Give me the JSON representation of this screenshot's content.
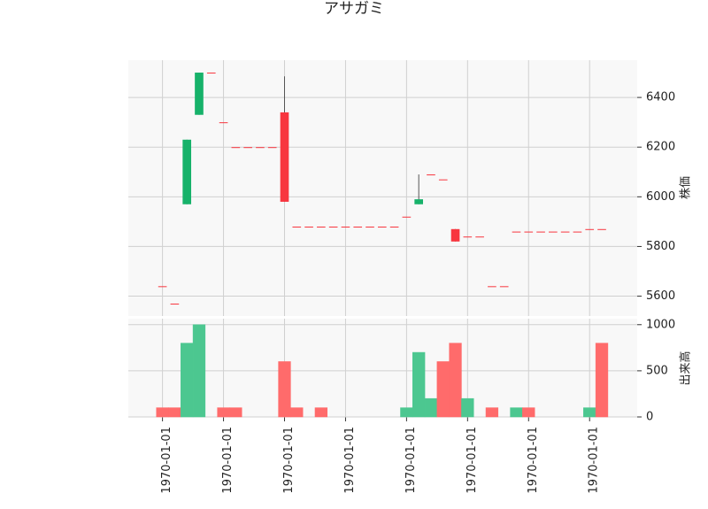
{
  "chart_data": [
    {
      "type": "candlestick",
      "title": "アサガミ",
      "ylabel": "株価",
      "x": [
        0,
        1,
        2,
        3,
        4,
        5,
        6,
        7,
        8,
        9,
        10,
        11,
        12,
        13,
        14,
        15,
        16,
        17,
        18,
        19,
        20,
        21,
        22,
        23,
        24,
        25,
        26,
        27,
        28,
        29,
        30,
        31,
        32,
        33,
        34,
        35,
        36
      ],
      "open": [
        5640,
        5570,
        5970,
        6330,
        6500,
        6300,
        6200,
        6200,
        6200,
        6200,
        6340,
        5880,
        5880,
        5880,
        5880,
        5880,
        5880,
        5880,
        5880,
        5880,
        5920,
        5970,
        6090,
        6070,
        5870,
        5840,
        5840,
        5640,
        5640,
        5860,
        5860,
        5860,
        5860,
        5860,
        5860,
        5870,
        5870
      ],
      "high": [
        5640,
        5570,
        6230,
        6500,
        6500,
        6300,
        6200,
        6200,
        6200,
        6200,
        6485,
        5880,
        5880,
        5880,
        5880,
        5880,
        5880,
        5880,
        5880,
        5880,
        5920,
        6090,
        6090,
        6070,
        5870,
        5840,
        5840,
        5640,
        5640,
        5860,
        5860,
        5860,
        5860,
        5860,
        5860,
        5870,
        5870
      ],
      "low": [
        5640,
        5570,
        5970,
        6330,
        6500,
        6300,
        6200,
        6200,
        6200,
        6200,
        5980,
        5880,
        5880,
        5880,
        5880,
        5880,
        5880,
        5880,
        5880,
        5880,
        5920,
        5970,
        6090,
        6070,
        5820,
        5840,
        5840,
        5640,
        5640,
        5860,
        5860,
        5860,
        5860,
        5860,
        5860,
        5870,
        5870
      ],
      "close": [
        5640,
        5570,
        6230,
        6500,
        6500,
        6300,
        6200,
        6200,
        6200,
        6200,
        5980,
        5880,
        5880,
        5880,
        5880,
        5880,
        5880,
        5880,
        5880,
        5880,
        5920,
        5990,
        6090,
        6070,
        5820,
        5840,
        5840,
        5640,
        5640,
        5860,
        5860,
        5860,
        5860,
        5860,
        5860,
        5870,
        5870
      ],
      "up_color": "#17b26a",
      "down_color": "#f8363f",
      "xlim": [
        -2.8,
        38.9
      ],
      "ylim": [
        5520,
        6550
      ],
      "yticks": [
        5600,
        5800,
        6000,
        6200,
        6400
      ],
      "grid": true
    },
    {
      "type": "volume",
      "ylabel": "出来高",
      "x": [
        0,
        1,
        2,
        3,
        4,
        5,
        6,
        7,
        8,
        9,
        10,
        11,
        12,
        13,
        14,
        15,
        16,
        17,
        18,
        19,
        20,
        21,
        22,
        23,
        24,
        25,
        26,
        27,
        28,
        29,
        30,
        31,
        32,
        33,
        34,
        35,
        36
      ],
      "values": [
        100,
        100,
        800,
        1000,
        0,
        100,
        100,
        0,
        0,
        0,
        600,
        100,
        0,
        100,
        0,
        0,
        0,
        0,
        0,
        0,
        100,
        700,
        200,
        600,
        800,
        200,
        0,
        100,
        0,
        100,
        100,
        0,
        0,
        0,
        0,
        100,
        800
      ],
      "up_color": "#4cc790",
      "down_color": "#ff6b6b",
      "xlim": [
        -2.8,
        38.9
      ],
      "ylim": [
        0,
        1065
      ],
      "yticks": [
        0,
        500,
        1000
      ],
      "xticks": [
        {
          "value": 0,
          "label": "1970-01-01"
        },
        {
          "value": 5,
          "label": "1970-01-01"
        },
        {
          "value": 10,
          "label": "1970-01-01"
        },
        {
          "value": 15,
          "label": "1970-01-01"
        },
        {
          "value": 20,
          "label": "1970-01-01"
        },
        {
          "value": 25,
          "label": "1970-01-01"
        },
        {
          "value": 30,
          "label": "1970-01-01"
        },
        {
          "value": 35,
          "label": "1970-01-01"
        }
      ],
      "grid": true
    }
  ]
}
